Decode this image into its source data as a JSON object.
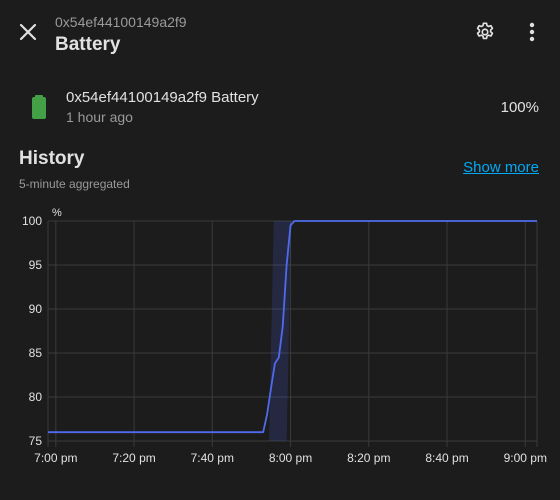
{
  "header": {
    "subtitle": "0x54ef44100149a2f9",
    "title": "Battery"
  },
  "entity": {
    "name": "0x54ef44100149a2f9 Battery",
    "last_changed": "1 hour ago",
    "state": "100%",
    "icon": "battery-full-icon",
    "icon_color": "#43a047"
  },
  "history": {
    "title": "History",
    "subtitle": "5-minute aggregated",
    "show_more": "Show more"
  },
  "chart_data": {
    "type": "line",
    "unit_label": "%",
    "ylim": [
      75,
      100
    ],
    "y_ticks": [
      75,
      80,
      85,
      90,
      95,
      100
    ],
    "x_tick_labels": [
      "7:00 pm",
      "7:20 pm",
      "7:40 pm",
      "8:00 pm",
      "8:20 pm",
      "8:40 pm",
      "9:00 pm"
    ],
    "x_ticks_min": [
      0,
      20,
      40,
      60,
      80,
      100,
      120
    ],
    "xlim_min": [
      -2,
      123
    ],
    "line_color": "#4f6bed",
    "grid": true,
    "series": [
      {
        "points": [
          [
            -2,
            76
          ],
          [
            50,
            76
          ],
          [
            53,
            76
          ],
          [
            54,
            78
          ],
          [
            55,
            81
          ],
          [
            56,
            83.8
          ],
          [
            57,
            84.5
          ],
          [
            58,
            88
          ],
          [
            59,
            95
          ],
          [
            60,
            99.5
          ],
          [
            61,
            100
          ],
          [
            123,
            100
          ]
        ]
      }
    ],
    "band_min": [
      54.5,
      59
    ]
  },
  "colors": {
    "background": "#1c1c1c",
    "accent_link": "#03a9f4"
  }
}
